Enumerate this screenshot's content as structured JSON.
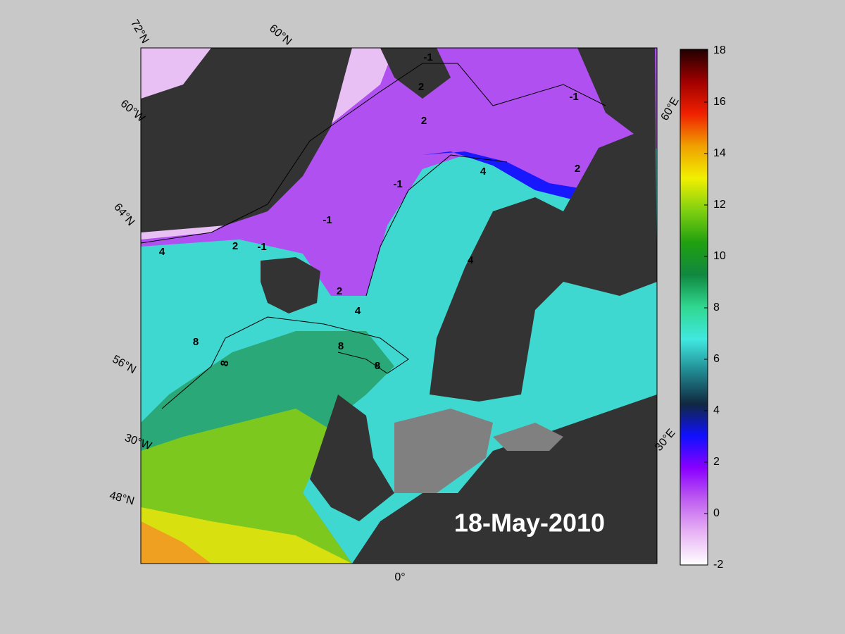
{
  "map": {
    "graticule_labels": [
      "72°N",
      "60°N",
      "60°W",
      "64°N",
      "56°N",
      "30°W",
      "48°N",
      "0°",
      "60°E",
      "30°E"
    ],
    "date": "18-May-2010",
    "contour_labels": [
      -1,
      -1,
      -1,
      -1,
      -1,
      2,
      2,
      2,
      2,
      2,
      4,
      4,
      4,
      8,
      8,
      8,
      8,
      4
    ],
    "colorbar": {
      "lim": [
        -2,
        18
      ],
      "ticks": [
        -2,
        0,
        2,
        4,
        6,
        8,
        10,
        12,
        14,
        16,
        18
      ],
      "colors": [
        "#ffffff",
        "#e8b4f4",
        "#c060f0",
        "#8a00ff",
        "#1010ff",
        "#102840",
        "#208890",
        "#40e8e0",
        "#30d890",
        "#108840",
        "#20a010",
        "#80d010",
        "#f0f000",
        "#f0a000",
        "#f02000",
        "#a00000",
        "#200000"
      ]
    }
  }
}
